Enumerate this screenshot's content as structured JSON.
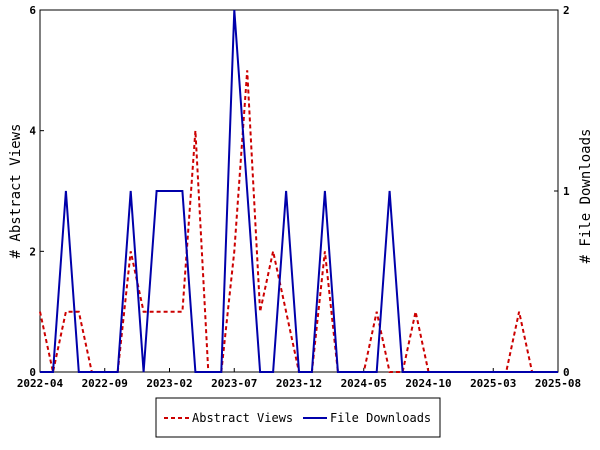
{
  "chart_data": {
    "type": "line",
    "x": [
      "2022-04",
      "2022-05",
      "2022-06",
      "2022-07",
      "2022-08",
      "2022-09",
      "2022-10",
      "2022-11",
      "2022-12",
      "2023-01",
      "2023-02",
      "2023-03",
      "2023-04",
      "2023-05",
      "2023-06",
      "2023-07",
      "2023-08",
      "2023-09",
      "2023-10",
      "2023-11",
      "2023-12",
      "2024-01",
      "2024-02",
      "2024-03",
      "2024-04",
      "2024-05",
      "2024-06",
      "2024-07",
      "2024-08",
      "2024-09",
      "2024-10",
      "2024-11",
      "2024-12",
      "2025-01",
      "2025-02",
      "2025-03",
      "2025-04",
      "2025-05",
      "2025-06",
      "2025-07",
      "2025-08"
    ],
    "x_tick_labels": [
      "2022-04",
      "2022-09",
      "2023-02",
      "2023-07",
      "2023-12",
      "2024-05",
      "2024-10",
      "2025-03",
      "2025-08"
    ],
    "series": [
      {
        "name": "Abstract Views",
        "axis": "left",
        "color": "#cc0000",
        "style": "dashed",
        "values": [
          1,
          0,
          1,
          1,
          0,
          0,
          0,
          2,
          1,
          1,
          1,
          1,
          4,
          0,
          0,
          2,
          5,
          1,
          2,
          1,
          0,
          0,
          2,
          0,
          0,
          0,
          1,
          0,
          0,
          1,
          0,
          0,
          0,
          0,
          0,
          0,
          0,
          1,
          0,
          0,
          0
        ]
      },
      {
        "name": "File Downloads",
        "axis": "right",
        "color": "#0000aa",
        "style": "solid",
        "values": [
          0,
          0,
          1,
          0,
          0,
          0,
          0,
          1,
          0,
          1,
          1,
          1,
          0,
          0,
          0,
          2,
          1,
          0,
          0,
          1,
          0,
          0,
          1,
          0,
          0,
          0,
          0,
          1,
          0,
          0,
          0,
          0,
          0,
          0,
          0,
          0,
          0,
          0,
          0,
          0,
          0
        ]
      }
    ],
    "ylabel": "# Abstract Views",
    "y2label": "# File Downloads",
    "ylim": [
      0,
      6
    ],
    "y_ticks": [
      "0",
      "2",
      "4",
      "6"
    ],
    "y2lim": [
      0,
      2
    ],
    "y2_ticks": [
      "0",
      "1",
      "2"
    ],
    "legend": {
      "position": "bottom",
      "items": [
        "Abstract Views",
        "File Downloads"
      ]
    }
  }
}
